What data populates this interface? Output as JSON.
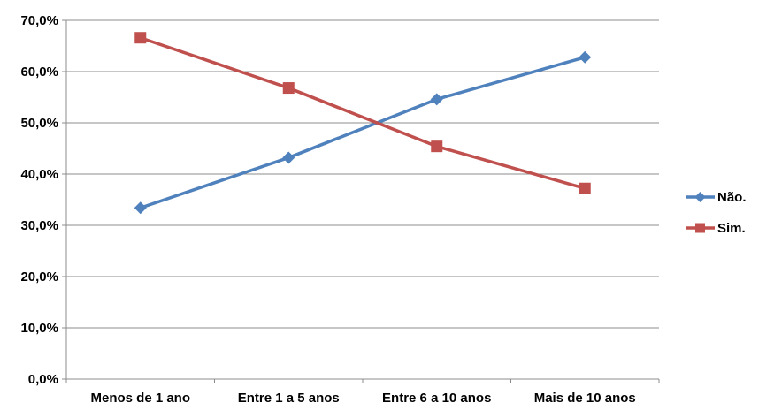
{
  "chart_data": {
    "type": "line",
    "categories": [
      "Menos de 1 ano",
      "Entre 1 a 5 anos",
      "Entre 6 a 10 anos",
      "Mais de 10 anos"
    ],
    "series": [
      {
        "name": "Não.",
        "values": [
          33.4,
          43.2,
          54.6,
          62.8
        ],
        "color": "#4F81BD",
        "marker": "diamond"
      },
      {
        "name": "Sim.",
        "values": [
          66.6,
          56.8,
          45.4,
          37.2
        ],
        "color": "#C0504D",
        "marker": "square"
      }
    ],
    "ylim": [
      0,
      70
    ],
    "yticks": [
      0,
      10,
      20,
      30,
      40,
      50,
      60,
      70
    ],
    "ytick_labels": [
      "0,0%",
      "10,0%",
      "20,0%",
      "30,0%",
      "40,0%",
      "50,0%",
      "60,0%",
      "70,0%"
    ],
    "grid": true,
    "legend_position": "right",
    "title": "",
    "xlabel": "",
    "ylabel": ""
  }
}
